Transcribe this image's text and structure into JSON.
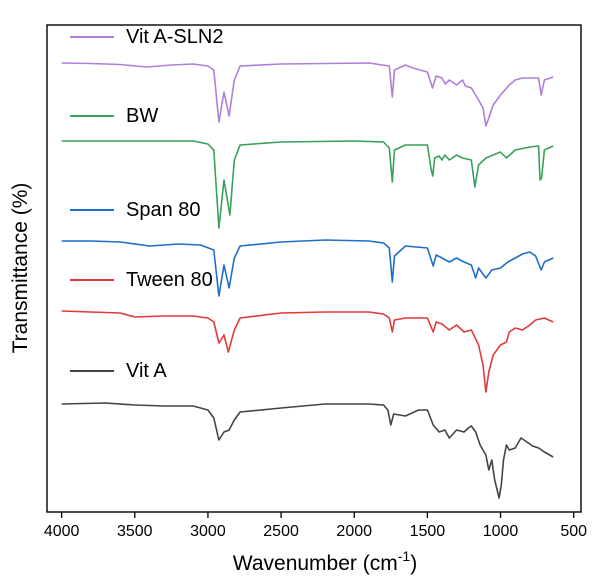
{
  "chart_data": {
    "type": "line",
    "title": "",
    "xlabel": "Wavenumber (cm",
    "xlabel_sup": "-1",
    "xlabel_tail": ")",
    "ylabel": "Transmittance (%)",
    "xlim": [
      4100,
      450
    ],
    "x_reversed": true,
    "x_ticks": [
      4000,
      3500,
      3000,
      2500,
      2000,
      1500,
      1000,
      500
    ],
    "x_tick_labels": [
      "4000",
      "3500",
      "3000",
      "2500",
      "2000",
      "1500",
      "1000",
      "500"
    ],
    "y_ticks_shown": false,
    "grid": false,
    "legend": "inline-above-each-series",
    "series": [
      {
        "name": "Vit A-SLN2",
        "color": "#b07fd8",
        "baseline": 63,
        "points": [
          [
            4000,
            63
          ],
          [
            3800,
            63.5
          ],
          [
            3600,
            64.5
          ],
          [
            3420,
            67
          ],
          [
            3250,
            65
          ],
          [
            3100,
            64
          ],
          [
            3000,
            66
          ],
          [
            2960,
            70
          ],
          [
            2925,
            122
          ],
          [
            2890,
            92
          ],
          [
            2855,
            116
          ],
          [
            2820,
            80
          ],
          [
            2780,
            66
          ],
          [
            2500,
            64
          ],
          [
            2200,
            63.5
          ],
          [
            1900,
            63
          ],
          [
            1760,
            66
          ],
          [
            1740,
            97
          ],
          [
            1725,
            70
          ],
          [
            1650,
            65
          ],
          [
            1600,
            68
          ],
          [
            1500,
            72
          ],
          [
            1465,
            88
          ],
          [
            1440,
            76
          ],
          [
            1400,
            78
          ],
          [
            1378,
            84
          ],
          [
            1350,
            80
          ],
          [
            1300,
            85
          ],
          [
            1260,
            80
          ],
          [
            1240,
            86
          ],
          [
            1200,
            88
          ],
          [
            1170,
            95
          ],
          [
            1120,
            108
          ],
          [
            1100,
            126
          ],
          [
            1080,
            118
          ],
          [
            1050,
            105
          ],
          [
            1000,
            95
          ],
          [
            970,
            90
          ],
          [
            940,
            85
          ],
          [
            900,
            80
          ],
          [
            850,
            78
          ],
          [
            800,
            78
          ],
          [
            740,
            78
          ],
          [
            722,
            95
          ],
          [
            700,
            80
          ],
          [
            640,
            77
          ]
        ]
      },
      {
        "name": "BW",
        "color": "#3aa05a",
        "baseline": 141,
        "points": [
          [
            4000,
            141
          ],
          [
            3500,
            141
          ],
          [
            3100,
            141
          ],
          [
            3000,
            144
          ],
          [
            2960,
            150
          ],
          [
            2925,
            228
          ],
          [
            2890,
            180
          ],
          [
            2850,
            215
          ],
          [
            2820,
            160
          ],
          [
            2780,
            145
          ],
          [
            2500,
            142
          ],
          [
            2000,
            141
          ],
          [
            1800,
            142
          ],
          [
            1760,
            148
          ],
          [
            1740,
            182
          ],
          [
            1725,
            150
          ],
          [
            1650,
            145
          ],
          [
            1500,
            145
          ],
          [
            1474,
            170
          ],
          [
            1463,
            176
          ],
          [
            1450,
            158
          ],
          [
            1420,
            156
          ],
          [
            1400,
            160
          ],
          [
            1380,
            155
          ],
          [
            1350,
            160
          ],
          [
            1300,
            155
          ],
          [
            1260,
            158
          ],
          [
            1200,
            160
          ],
          [
            1175,
            187
          ],
          [
            1150,
            165
          ],
          [
            1100,
            158
          ],
          [
            1050,
            155
          ],
          [
            1000,
            152
          ],
          [
            960,
            158
          ],
          [
            900,
            150
          ],
          [
            800,
            147
          ],
          [
            740,
            146
          ],
          [
            730,
            180
          ],
          [
            719,
            178
          ],
          [
            700,
            150
          ],
          [
            640,
            146
          ]
        ]
      },
      {
        "name": "Span 80",
        "color": "#1f6fc8",
        "baseline": 241,
        "points": [
          [
            4000,
            241
          ],
          [
            3800,
            241
          ],
          [
            3600,
            242
          ],
          [
            3400,
            246
          ],
          [
            3200,
            244
          ],
          [
            3050,
            245
          ],
          [
            2960,
            250
          ],
          [
            2925,
            296
          ],
          [
            2890,
            265
          ],
          [
            2855,
            288
          ],
          [
            2820,
            258
          ],
          [
            2780,
            246
          ],
          [
            2500,
            242
          ],
          [
            2200,
            240
          ],
          [
            1900,
            241
          ],
          [
            1800,
            243
          ],
          [
            1760,
            248
          ],
          [
            1740,
            282
          ],
          [
            1725,
            256
          ],
          [
            1650,
            246
          ],
          [
            1500,
            248
          ],
          [
            1460,
            266
          ],
          [
            1440,
            255
          ],
          [
            1400,
            258
          ],
          [
            1350,
            262
          ],
          [
            1300,
            258
          ],
          [
            1250,
            262
          ],
          [
            1200,
            265
          ],
          [
            1170,
            278
          ],
          [
            1150,
            268
          ],
          [
            1100,
            278
          ],
          [
            1060,
            270
          ],
          [
            1000,
            268
          ],
          [
            950,
            262
          ],
          [
            900,
            258
          ],
          [
            850,
            254
          ],
          [
            800,
            252
          ],
          [
            760,
            256
          ],
          [
            722,
            270
          ],
          [
            700,
            262
          ],
          [
            640,
            258
          ]
        ]
      },
      {
        "name": "Tween 80",
        "color": "#e03a3a",
        "baseline": 311,
        "points": [
          [
            4000,
            311
          ],
          [
            3800,
            312
          ],
          [
            3600,
            313
          ],
          [
            3500,
            317
          ],
          [
            3300,
            316
          ],
          [
            3100,
            316
          ],
          [
            3000,
            318
          ],
          [
            2960,
            322
          ],
          [
            2925,
            343
          ],
          [
            2890,
            335
          ],
          [
            2860,
            352
          ],
          [
            2820,
            330
          ],
          [
            2780,
            318
          ],
          [
            2500,
            313
          ],
          [
            2200,
            312
          ],
          [
            1900,
            312
          ],
          [
            1800,
            314
          ],
          [
            1760,
            318
          ],
          [
            1740,
            332
          ],
          [
            1725,
            320
          ],
          [
            1650,
            318
          ],
          [
            1500,
            318
          ],
          [
            1460,
            332
          ],
          [
            1440,
            322
          ],
          [
            1400,
            324
          ],
          [
            1350,
            330
          ],
          [
            1300,
            325
          ],
          [
            1250,
            332
          ],
          [
            1200,
            330
          ],
          [
            1150,
            345
          ],
          [
            1120,
            365
          ],
          [
            1100,
            392
          ],
          [
            1080,
            372
          ],
          [
            1050,
            355
          ],
          [
            1000,
            345
          ],
          [
            960,
            342
          ],
          [
            940,
            332
          ],
          [
            900,
            328
          ],
          [
            850,
            330
          ],
          [
            800,
            325
          ],
          [
            760,
            320
          ],
          [
            700,
            318
          ],
          [
            640,
            322
          ]
        ]
      },
      {
        "name": "Vit A",
        "color": "#444444",
        "baseline": 404,
        "points": [
          [
            4000,
            404
          ],
          [
            3700,
            403
          ],
          [
            3500,
            405
          ],
          [
            3300,
            406
          ],
          [
            3100,
            406
          ],
          [
            3000,
            410
          ],
          [
            2960,
            418
          ],
          [
            2925,
            440
          ],
          [
            2890,
            432
          ],
          [
            2855,
            430
          ],
          [
            2820,
            420
          ],
          [
            2780,
            412
          ],
          [
            2500,
            408
          ],
          [
            2200,
            404
          ],
          [
            1900,
            404
          ],
          [
            1800,
            405
          ],
          [
            1770,
            410
          ],
          [
            1750,
            425
          ],
          [
            1730,
            414
          ],
          [
            1650,
            416
          ],
          [
            1560,
            410
          ],
          [
            1500,
            410
          ],
          [
            1460,
            425
          ],
          [
            1420,
            432
          ],
          [
            1380,
            430
          ],
          [
            1350,
            438
          ],
          [
            1300,
            430
          ],
          [
            1250,
            432
          ],
          [
            1220,
            428
          ],
          [
            1200,
            426
          ],
          [
            1170,
            432
          ],
          [
            1140,
            445
          ],
          [
            1100,
            455
          ],
          [
            1080,
            470
          ],
          [
            1060,
            460
          ],
          [
            1040,
            480
          ],
          [
            1010,
            498
          ],
          [
            995,
            485
          ],
          [
            980,
            460
          ],
          [
            960,
            445
          ],
          [
            940,
            450
          ],
          [
            900,
            448
          ],
          [
            860,
            438
          ],
          [
            820,
            442
          ],
          [
            780,
            446
          ],
          [
            740,
            448
          ],
          [
            720,
            450
          ],
          [
            700,
            452
          ],
          [
            640,
            457
          ]
        ]
      }
    ]
  }
}
